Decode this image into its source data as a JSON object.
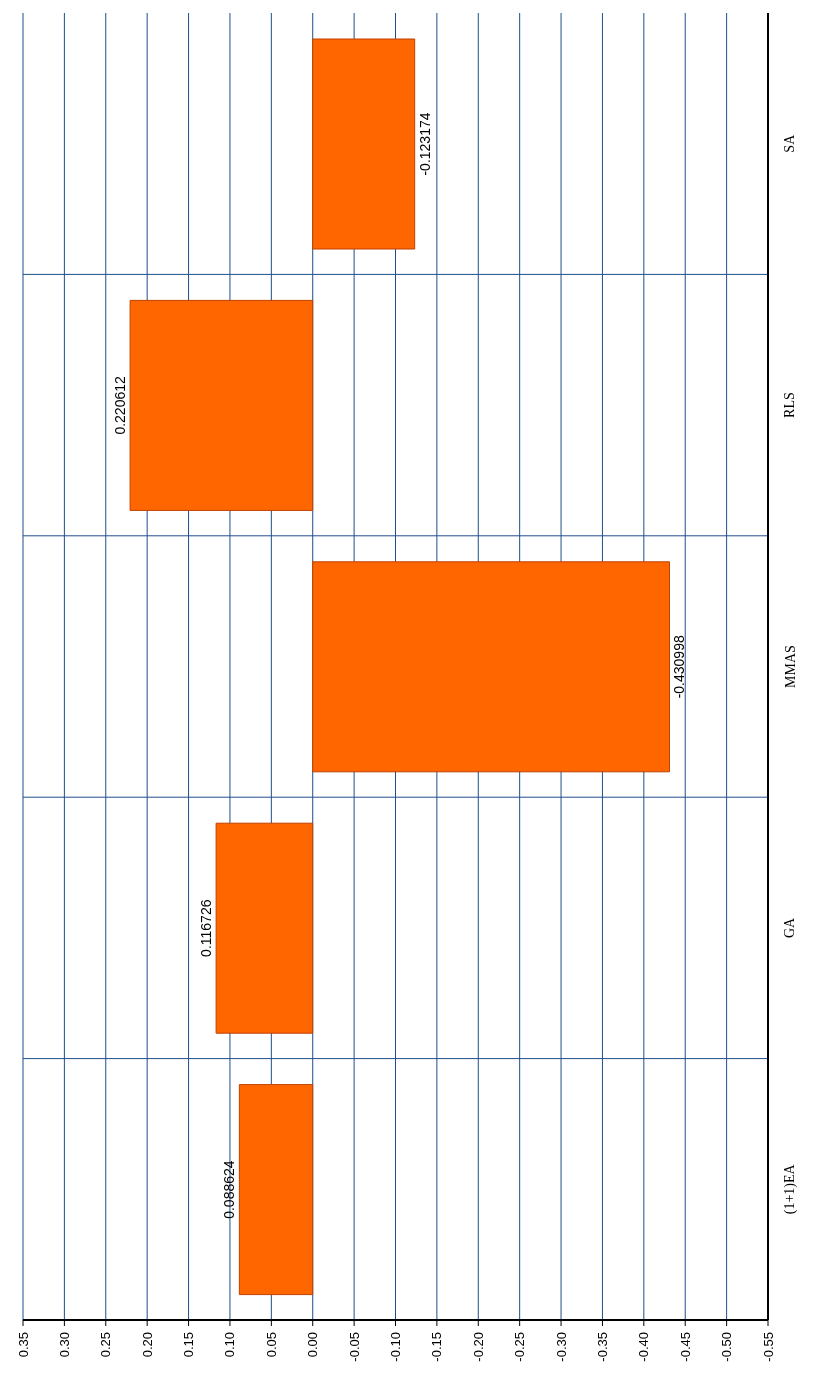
{
  "chart_data": {
    "type": "bar",
    "orientation": "horizontal",
    "categories": [
      "SA",
      "RLS",
      "MMAS",
      "GA",
      "(1+1)EA"
    ],
    "values": [
      -0.123174,
      0.220612,
      -0.430998,
      0.116726,
      0.088624
    ],
    "color": "#ff6600",
    "xlim": [
      0.35,
      -0.55
    ],
    "xticks": [
      {
        "value": 0.35,
        "label": "0.35"
      },
      {
        "value": 0.3,
        "label": "0.30"
      },
      {
        "value": 0.25,
        "label": "0.25"
      },
      {
        "value": 0.2,
        "label": "0.20"
      },
      {
        "value": 0.15,
        "label": "0.15"
      },
      {
        "value": 0.1,
        "label": "0.10"
      },
      {
        "value": 0.05,
        "label": "0.05"
      },
      {
        "value": 0,
        "label": "0.00"
      },
      {
        "value": -0.05,
        "label": "-0.05"
      },
      {
        "value": -0.1,
        "label": "-0.10"
      },
      {
        "value": -0.15,
        "label": "-0.15"
      },
      {
        "value": -0.2,
        "label": "-0.20"
      },
      {
        "value": -0.25,
        "label": "-0.25"
      },
      {
        "value": -0.3,
        "label": "-0.30"
      },
      {
        "value": -0.35,
        "label": "-0.35"
      },
      {
        "value": -0.4,
        "label": "-0.40"
      },
      {
        "value": -0.45,
        "label": "-0.45"
      },
      {
        "value": -0.5,
        "label": "-0.50"
      },
      {
        "value": -0.55,
        "label": "-0.55"
      }
    ],
    "grid": true,
    "data_labels": true
  }
}
